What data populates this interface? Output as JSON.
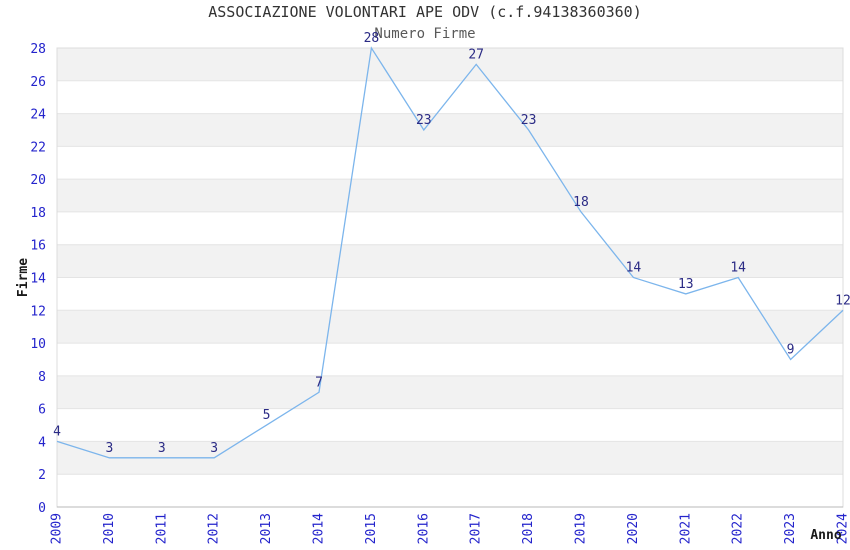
{
  "chart_data": {
    "type": "line",
    "title": "ASSOCIAZIONE VOLONTARI APE ODV (c.f.94138360360)",
    "subtitle": "Numero Firme",
    "xlabel": "Anno",
    "ylabel": "Firme",
    "categories": [
      "2009",
      "2010",
      "2011",
      "2012",
      "2013",
      "2014",
      "2015",
      "2016",
      "2017",
      "2018",
      "2019",
      "2020",
      "2021",
      "2022",
      "2023",
      "2024"
    ],
    "series": [
      {
        "name": "Numero Firme",
        "values": [
          4,
          3,
          3,
          3,
          5,
          7,
          28,
          23,
          27,
          23,
          18,
          14,
          13,
          14,
          9,
          12
        ]
      }
    ],
    "ylim": [
      0,
      28
    ],
    "ytick_step": 2,
    "grid": "horizontal-stripes",
    "legend": "none",
    "data_labels": true,
    "colors": {
      "line": "#7cb5ec",
      "tick_label": "#2424cc",
      "data_label": "#2b2b85",
      "stripe": "#f2f2f2",
      "gridline": "#e4e4e4",
      "axis_line": "#b8b8b8",
      "plot_border": "#dcdcdc",
      "title": "#333333",
      "subtitle": "#595959",
      "axis_title": "#1a1a1a"
    }
  }
}
